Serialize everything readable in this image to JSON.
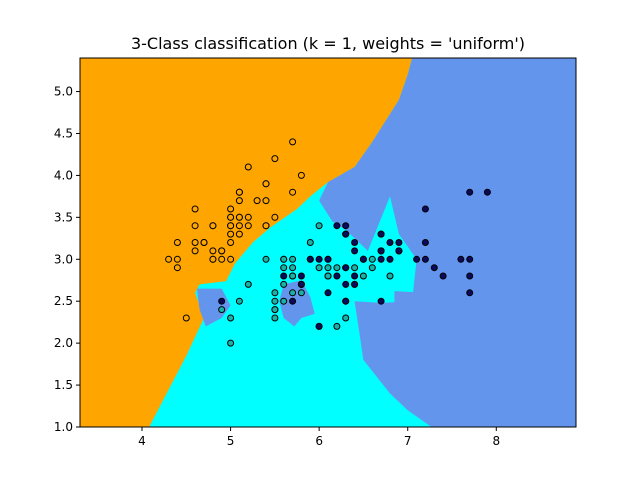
{
  "chart_data": {
    "type": "scatter",
    "title": "3-Class classification (k = 1, weights = 'uniform')",
    "xlabel": "",
    "ylabel": "",
    "xlim": [
      3.3,
      8.9
    ],
    "ylim": [
      1.0,
      5.4
    ],
    "x_ticks": [
      "4",
      "5",
      "6",
      "7",
      "8"
    ],
    "y_ticks": [
      "1.0",
      "1.5",
      "2.0",
      "2.5",
      "3.0",
      "3.5",
      "4.0",
      "4.5",
      "5.0"
    ],
    "grid": false,
    "legend": "none",
    "region_colors": {
      "class_0": "#FFA500",
      "class_1": "#00FFFF",
      "class_2": "#6495ED"
    },
    "point_colors": {
      "class_0": "#FFA500",
      "class_1": "#19B2A8",
      "class_2": "#0B0B5E"
    },
    "decision_regions": [
      {
        "class": "class_0",
        "polygon": [
          [
            3.3,
            1.0
          ],
          [
            4.08,
            1.0
          ],
          [
            4.5,
            1.85
          ],
          [
            4.7,
            2.3
          ],
          [
            4.6,
            2.6
          ],
          [
            4.65,
            2.7
          ],
          [
            4.95,
            2.74
          ],
          [
            5.05,
            2.95
          ],
          [
            5.25,
            3.2
          ],
          [
            5.45,
            3.38
          ],
          [
            5.75,
            3.6
          ],
          [
            5.9,
            3.75
          ],
          [
            6.1,
            3.92
          ],
          [
            6.4,
            4.1
          ],
          [
            6.6,
            4.4
          ],
          [
            6.9,
            4.9
          ],
          [
            7.0,
            5.2
          ],
          [
            7.05,
            5.4
          ],
          [
            3.3,
            5.4
          ]
        ]
      },
      {
        "class": "class_2",
        "polygon": [
          [
            7.05,
            5.4
          ],
          [
            7.0,
            5.2
          ],
          [
            6.9,
            4.9
          ],
          [
            6.6,
            4.4
          ],
          [
            6.4,
            4.1
          ],
          [
            6.1,
            3.92
          ],
          [
            6.0,
            3.7
          ],
          [
            6.15,
            3.45
          ],
          [
            6.3,
            3.35
          ],
          [
            6.55,
            3.1
          ],
          [
            6.8,
            3.75
          ],
          [
            6.9,
            3.3
          ],
          [
            7.1,
            3.0
          ],
          [
            7.05,
            2.5
          ],
          [
            6.7,
            2.48
          ],
          [
            6.4,
            2.5
          ],
          [
            6.5,
            1.8
          ],
          [
            6.8,
            1.4
          ],
          [
            7.0,
            1.2
          ],
          [
            7.27,
            1.0
          ],
          [
            8.9,
            1.0
          ],
          [
            8.9,
            5.4
          ]
        ]
      },
      {
        "class": "class_2",
        "polygon": [
          [
            5.8,
            2.75
          ],
          [
            5.9,
            2.55
          ],
          [
            5.95,
            2.35
          ],
          [
            5.8,
            2.3
          ],
          [
            5.72,
            2.2
          ],
          [
            5.6,
            2.3
          ],
          [
            5.55,
            2.5
          ],
          [
            5.6,
            2.7
          ]
        ]
      },
      {
        "class": "class_2",
        "polygon": [
          [
            6.85,
            2.62
          ],
          [
            7.2,
            2.6
          ],
          [
            7.25,
            2.3
          ],
          [
            6.95,
            2.25
          ],
          [
            6.85,
            2.4
          ]
        ]
      },
      {
        "class": "class_2",
        "polygon": [
          [
            4.62,
            2.65
          ],
          [
            4.9,
            2.65
          ],
          [
            5.0,
            2.45
          ],
          [
            4.9,
            2.3
          ],
          [
            4.72,
            2.2
          ],
          [
            4.65,
            2.4
          ]
        ]
      }
    ],
    "series": [
      {
        "class": "class_0",
        "x": [
          5.1,
          4.9,
          4.7,
          4.6,
          5.0,
          5.4,
          4.6,
          5.0,
          4.4,
          4.9,
          5.4,
          4.8,
          4.8,
          4.3,
          5.8,
          5.7,
          5.4,
          5.1,
          5.7,
          5.1,
          5.4,
          5.1,
          4.6,
          5.1,
          4.8,
          5.0,
          5.0,
          5.2,
          5.2,
          4.7,
          4.8,
          5.4,
          5.2,
          5.5,
          4.9,
          5.0,
          5.5,
          4.4,
          5.1,
          5.0,
          4.5,
          4.4,
          5.0,
          5.1,
          4.8,
          5.1,
          4.6,
          5.3,
          5.0
        ],
        "y": [
          3.5,
          3.0,
          3.2,
          3.1,
          3.6,
          3.9,
          3.4,
          3.4,
          2.9,
          3.1,
          3.7,
          3.4,
          3.0,
          3.0,
          4.0,
          4.4,
          3.9,
          3.5,
          3.8,
          3.8,
          3.4,
          3.7,
          3.6,
          3.3,
          3.4,
          3.0,
          3.4,
          3.5,
          3.4,
          3.2,
          3.1,
          3.4,
          4.1,
          4.2,
          3.1,
          3.2,
          3.5,
          3.0,
          3.4,
          3.5,
          2.3,
          3.2,
          3.5,
          3.8,
          3.0,
          3.8,
          3.2,
          3.7,
          3.3
        ]
      },
      {
        "class": "class_1",
        "x": [
          6.9,
          5.5,
          6.5,
          5.7,
          6.3,
          4.9,
          6.6,
          5.2,
          5.0,
          5.9,
          6.0,
          6.1,
          5.6,
          6.7,
          5.6,
          5.8,
          6.2,
          5.6,
          5.9,
          6.1,
          6.4,
          6.6,
          6.8,
          6.0,
          5.7,
          5.5,
          5.5,
          5.8,
          5.4,
          6.0,
          6.7,
          6.3,
          5.6,
          5.5,
          5.5,
          6.1,
          5.8,
          5.0,
          5.6,
          5.7,
          5.7,
          6.2,
          5.1,
          5.7,
          6.3,
          6.5,
          6.1
        ],
        "y": [
          3.1,
          2.3,
          2.8,
          2.8,
          3.3,
          2.4,
          2.9,
          2.7,
          2.0,
          3.0,
          2.2,
          2.9,
          2.9,
          3.1,
          3.0,
          2.7,
          2.2,
          2.5,
          3.2,
          2.8,
          2.9,
          3.0,
          2.8,
          2.9,
          2.6,
          2.4,
          2.4,
          2.7,
          3.0,
          3.4,
          3.1,
          2.3,
          3.0,
          2.5,
          2.6,
          3.0,
          2.6,
          2.3,
          2.7,
          3.0,
          2.9,
          2.9,
          2.5,
          2.8,
          2.5,
          3.0,
          2.8
        ]
      },
      {
        "class": "class_2",
        "x": [
          6.3,
          5.8,
          7.1,
          6.3,
          6.5,
          7.6,
          4.9,
          7.3,
          6.7,
          7.2,
          6.4,
          6.8,
          5.7,
          5.8,
          6.4,
          7.7,
          7.7,
          6.0,
          6.9,
          5.6,
          7.7,
          6.3,
          6.7,
          7.2,
          6.2,
          6.1,
          7.2,
          7.4,
          7.9,
          6.4,
          6.1,
          7.7,
          6.3,
          6.4,
          6.0,
          6.9,
          6.7,
          6.9,
          6.8,
          6.7,
          6.3,
          6.5,
          6.2,
          5.9,
          6.3,
          6.4,
          6.7
        ],
        "y": [
          3.3,
          2.7,
          3.0,
          2.9,
          3.0,
          3.0,
          2.5,
          2.9,
          2.5,
          3.6,
          2.7,
          3.0,
          2.5,
          2.8,
          3.2,
          3.8,
          2.6,
          2.2,
          3.2,
          2.8,
          2.8,
          2.7,
          3.3,
          3.2,
          2.8,
          3.0,
          3.0,
          2.8,
          3.8,
          2.8,
          2.6,
          3.0,
          3.4,
          3.1,
          3.0,
          3.1,
          3.1,
          3.1,
          3.2,
          3.3,
          2.5,
          3.0,
          3.4,
          3.0,
          2.9,
          2.7,
          3.0
        ]
      }
    ]
  }
}
